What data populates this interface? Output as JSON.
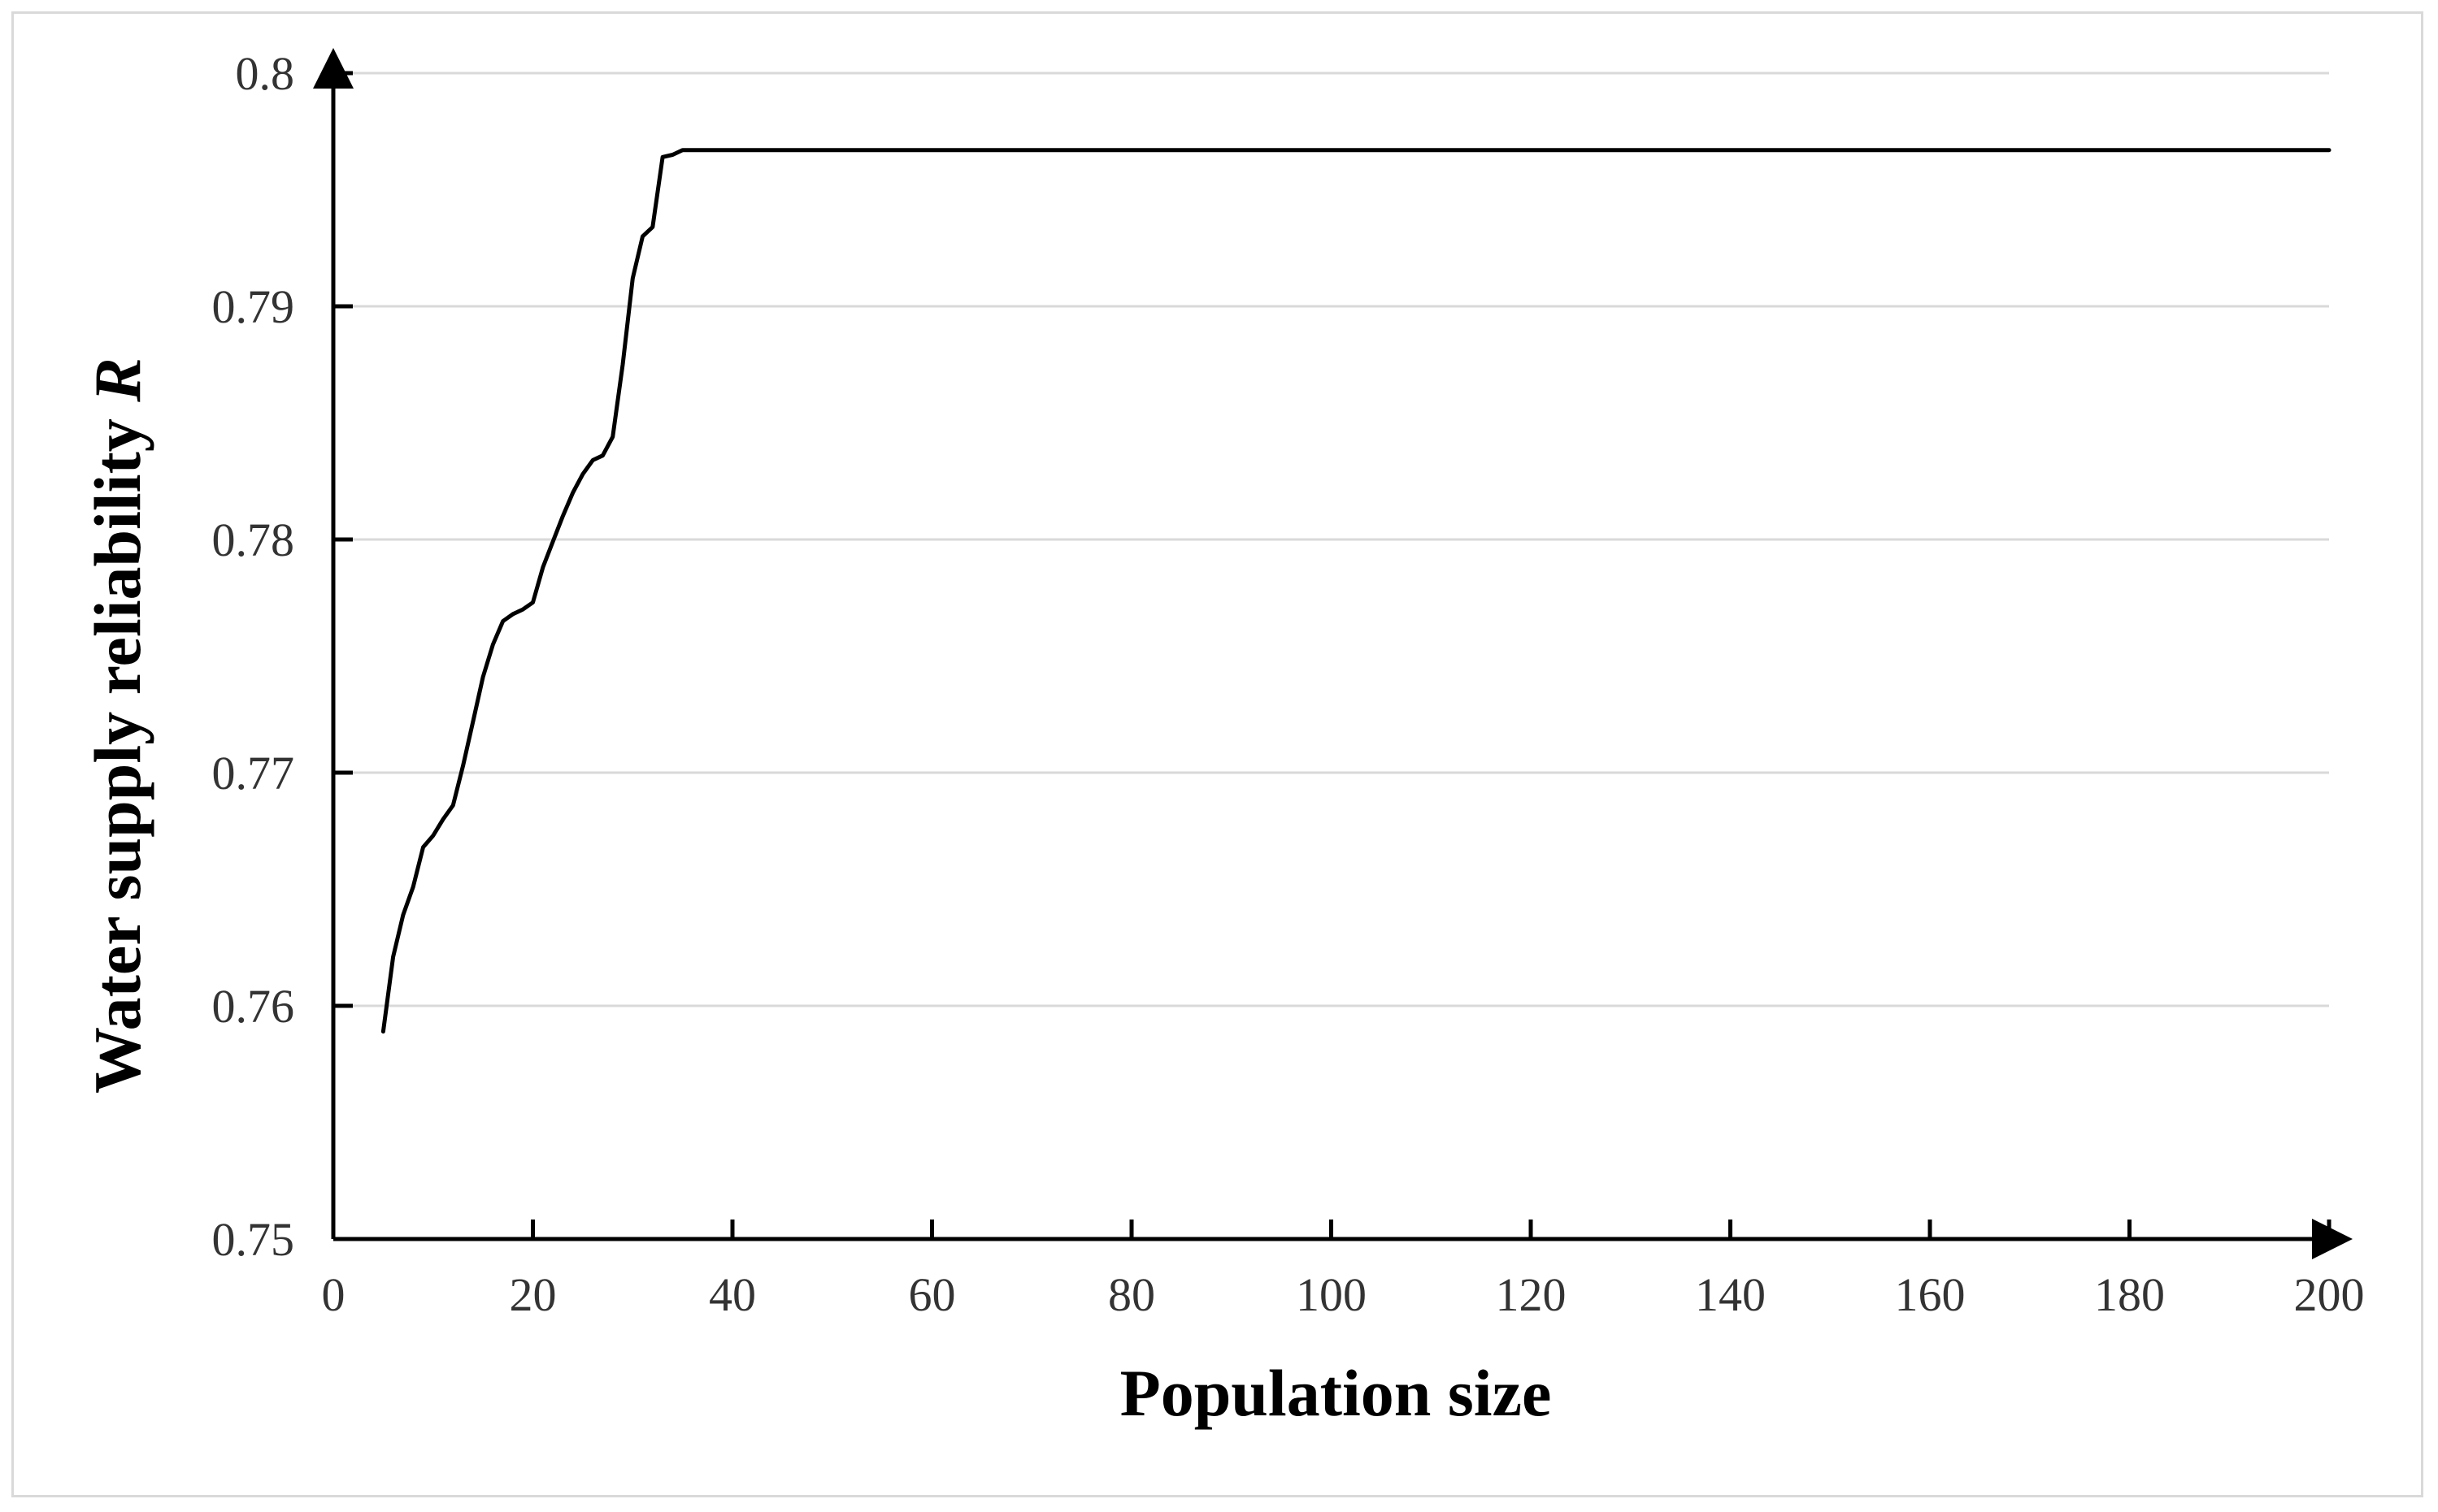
{
  "chart_data": {
    "type": "line",
    "title": "",
    "xlabel": "Population size",
    "ylabel": "Water supply reliability",
    "ylabel_symbol": "R",
    "xlim": [
      0,
      200
    ],
    "ylim": [
      0.75,
      0.8
    ],
    "xticks": [
      0,
      20,
      40,
      60,
      80,
      100,
      120,
      140,
      160,
      180,
      200
    ],
    "yticks": [
      0.75,
      0.76,
      0.77,
      0.78,
      0.79,
      0.8
    ],
    "xtick_labels": [
      "0",
      "20",
      "40",
      "60",
      "80",
      "100",
      "120",
      "140",
      "160",
      "180",
      "200"
    ],
    "ytick_labels": [
      "0.75",
      "0.76",
      "0.77",
      "0.78",
      "0.79",
      "0.8"
    ],
    "grid": "horizontal",
    "colors": {
      "line": "#000000",
      "grid": "#d9d9d9",
      "axis": "#000000",
      "frame": "#d9d9d9"
    },
    "series": [
      {
        "x": [
          5,
          6,
          7,
          8,
          9,
          10,
          11,
          12,
          13,
          14,
          15,
          16,
          17,
          18,
          19,
          20,
          21,
          22,
          23,
          24,
          25,
          26,
          27,
          28,
          29,
          30,
          31,
          32,
          33,
          34,
          35,
          40,
          60,
          80,
          100,
          120,
          140,
          160,
          180,
          200
        ],
        "y": [
          0.7589,
          0.7621,
          0.7639,
          0.7651,
          0.7668,
          0.7673,
          0.768,
          0.7686,
          0.7703,
          0.7722,
          0.7741,
          0.7755,
          0.7765,
          0.7768,
          0.777,
          0.7773,
          0.7788,
          0.7799,
          0.781,
          0.782,
          0.7828,
          0.7834,
          0.7836,
          0.7844,
          0.7875,
          0.7912,
          0.793,
          0.7934,
          0.7964,
          0.7965,
          0.7967,
          0.7967,
          0.7967,
          0.7967,
          0.7967,
          0.7967,
          0.7967,
          0.7967,
          0.7967,
          0.7967
        ]
      }
    ]
  }
}
